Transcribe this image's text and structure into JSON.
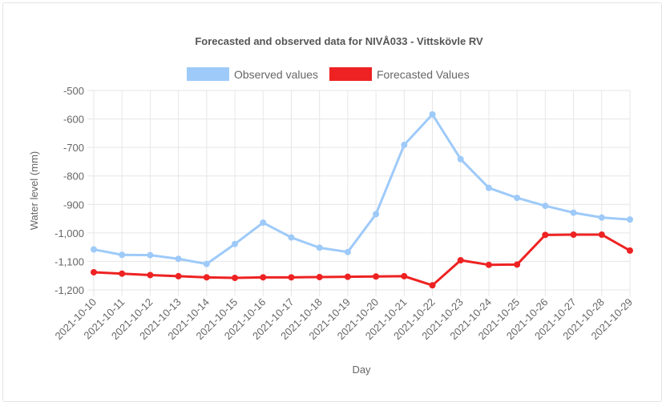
{
  "chart_data": {
    "type": "line",
    "title": "Forecasted and observed data for NIVÅ033 - Vittskövle RV",
    "xlabel": "Day",
    "ylabel": "Water level (mm)",
    "ylim": [
      -1200,
      -500
    ],
    "yticks": [
      -500,
      -600,
      -700,
      -800,
      -900,
      -1000,
      -1100,
      -1200
    ],
    "ytick_labels": [
      "-500",
      "-600",
      "-700",
      "-800",
      "-900",
      "-1,000",
      "-1,100",
      "-1,200"
    ],
    "grid": true,
    "legend_position": "top",
    "categories": [
      "2021-10-10",
      "2021-10-11",
      "2021-10-12",
      "2021-10-13",
      "2021-10-14",
      "2021-10-15",
      "2021-10-16",
      "2021-10-17",
      "2021-10-18",
      "2021-10-19",
      "2021-10-20",
      "2021-10-21",
      "2021-10-22",
      "2021-10-23",
      "2021-10-24",
      "2021-10-25",
      "2021-10-26",
      "2021-10-27",
      "2021-10-28",
      "2021-10-29"
    ],
    "series": [
      {
        "name": "Observed values",
        "color": "#9ecaf9",
        "values": [
          -1058,
          -1077,
          -1078,
          -1091,
          -1109,
          -1039,
          -964,
          -1016,
          -1052,
          -1067,
          -934,
          -691,
          -584,
          -741,
          -842,
          -877,
          -905,
          -929,
          -946,
          -953
        ]
      },
      {
        "name": "Forecasted Values",
        "color": "#ee2222",
        "values": [
          -1138,
          -1143,
          -1148,
          -1152,
          -1156,
          -1158,
          -1156,
          -1156,
          -1155,
          -1154,
          -1153,
          -1152,
          -1184,
          -1096,
          -1112,
          -1111,
          -1007,
          -1006,
          -1006,
          -1062
        ]
      }
    ]
  }
}
